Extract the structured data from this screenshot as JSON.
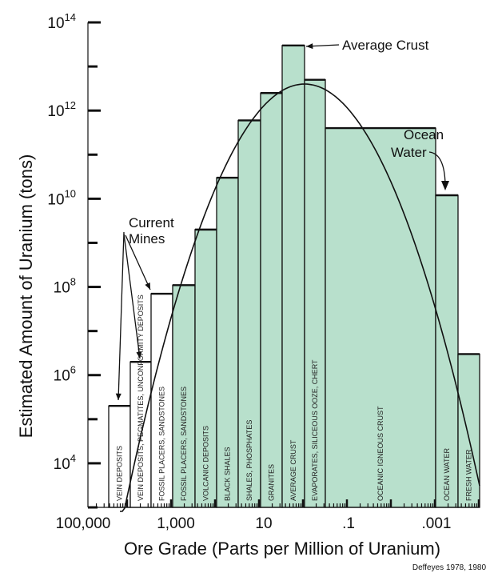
{
  "chart_data": {
    "type": "bar",
    "title": "",
    "xlabel": "Ore Grade (Parts per Million of Uranium)",
    "ylabel": "Estimated Amount of Uranium (tons)",
    "y_scale": "log",
    "ylim_exponents": [
      3,
      14
    ],
    "x_scale": "log-reversed",
    "x_ticks": [
      "100,000",
      "1,000",
      "10",
      ".1",
      ".001"
    ],
    "y_ticks": [
      {
        "base": "10",
        "exp": "4"
      },
      {
        "base": "10",
        "exp": "6"
      },
      {
        "base": "10",
        "exp": "8"
      },
      {
        "base": "10",
        "exp": "10"
      },
      {
        "base": "10",
        "exp": "12"
      },
      {
        "base": "10",
        "exp": "14"
      }
    ],
    "categories": [
      "VEIN DEPOSITS",
      "VEIN DEPOSITS, PEGMATITES, UNCONFORMITY DEPOSITS",
      "FOSSIL PLACERS, SANDSTONES",
      "FOSSIL PLACERS, SANDSTONES",
      "VOLCANIC DEPOSITS",
      "BLACK SHALES",
      "SHALES, PHOSPHATES",
      "GRANITES",
      "AVERAGE CRUST",
      "EVAPORATES, SILICEOUS OOZE, CHERT",
      "OCEANIC IGNEOUS CRUST",
      "OCEAN WATER",
      "FRESH WATER"
    ],
    "values": [
      200000.0,
      2000000.0,
      70000000.0,
      110000000.0,
      2000000000.0,
      30000000000.0,
      600000000000.0,
      2500000000000.0,
      30000000000000.0,
      5000000000000.0,
      400000000000.0,
      12000000000.0,
      3000000.0
    ],
    "filled": [
      false,
      false,
      false,
      true,
      true,
      true,
      true,
      true,
      true,
      true,
      true,
      true,
      true
    ],
    "annotations": {
      "current_mines": [
        "Current",
        "Mines"
      ],
      "average_crust": "Average Crust",
      "ocean_water": [
        "Ocean",
        "Water"
      ]
    },
    "credit": "Deffeyes 1978, 1980",
    "colors": {
      "bar_fill": "#b8e0cc",
      "stroke": "#111111"
    }
  }
}
